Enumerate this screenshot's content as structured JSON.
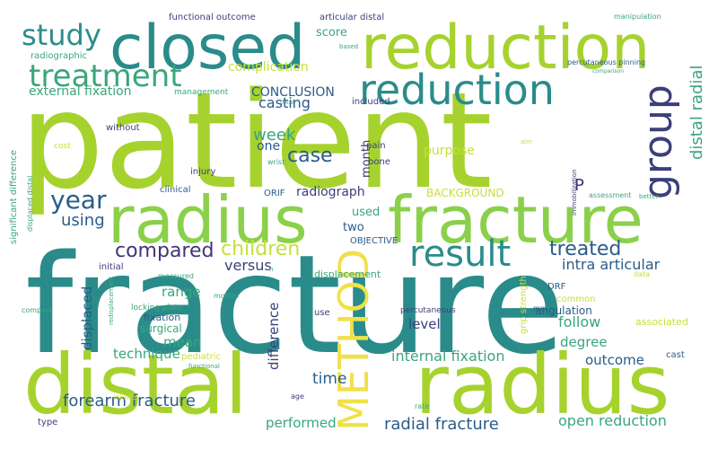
{
  "words": [
    {
      "text": "patient",
      "color": "#a6d22e"
    },
    {
      "text": "fracture",
      "color": "#2a8c8a"
    },
    {
      "text": "distal",
      "color": "#a6d22e"
    },
    {
      "text": "radius",
      "color": "#a6d22e"
    },
    {
      "text": "closed",
      "color": "#2a8c8a"
    },
    {
      "text": "reduction",
      "color": "#a6d22e"
    },
    {
      "text": "radius",
      "color": "#8bd04a"
    },
    {
      "text": "fracture",
      "color": "#8bd04a"
    },
    {
      "text": "reduction",
      "color": "#2a8c8a"
    },
    {
      "text": "result",
      "color": "#2a8c8a"
    },
    {
      "text": "METHOD",
      "color": "#f0e14a"
    },
    {
      "text": "group",
      "color": "#3b3f7a"
    },
    {
      "text": "treatment",
      "color": "#3aa67c"
    },
    {
      "text": "study",
      "color": "#2a8c8a"
    },
    {
      "text": "year",
      "color": "#2a5c8a"
    },
    {
      "text": "compared",
      "color": "#44337a"
    },
    {
      "text": "children",
      "color": "#c6e03a"
    },
    {
      "text": "treated",
      "color": "#2a5c8a"
    },
    {
      "text": "distal radial",
      "color": "#3aa67c"
    },
    {
      "text": "case",
      "color": "#2a5c8a"
    },
    {
      "text": "week",
      "color": "#3aa67c"
    },
    {
      "text": "casting",
      "color": "#2a5c8a"
    },
    {
      "text": "CONCLUSION",
      "color": "#2a5c8a"
    },
    {
      "text": "external fixation",
      "color": "#3aa67c"
    },
    {
      "text": "complication",
      "color": "#c6e03a"
    },
    {
      "text": "score",
      "color": "#3aa67c"
    },
    {
      "text": "radiograph",
      "color": "#3b3f7a"
    },
    {
      "text": "BACKGROUND",
      "color": "#c6e03a"
    },
    {
      "text": "purpose",
      "color": "#c6e03a"
    },
    {
      "text": "using",
      "color": "#2a5c8a"
    },
    {
      "text": "intra articular",
      "color": "#2a5c8a"
    },
    {
      "text": "versus",
      "color": "#3b3f7a"
    },
    {
      "text": "range",
      "color": "#3aa67c"
    },
    {
      "text": "displaced",
      "color": "#2a5c8a"
    },
    {
      "text": "mean",
      "color": "#3aa67c"
    },
    {
      "text": "technique",
      "color": "#3aa67c"
    },
    {
      "text": "difference",
      "color": "#3b3f7a"
    },
    {
      "text": "level",
      "color": "#3b3f7a"
    },
    {
      "text": "follow",
      "color": "#3aa67c"
    },
    {
      "text": "degree",
      "color": "#3aa67c"
    },
    {
      "text": "internal fixation",
      "color": "#3aa67c"
    },
    {
      "text": "outcome",
      "color": "#2a5c8a"
    },
    {
      "text": "time",
      "color": "#2a5c8a"
    },
    {
      "text": "forearm fracture",
      "color": "#2a5c8a"
    },
    {
      "text": "performed",
      "color": "#3aa67c"
    },
    {
      "text": "radial fracture",
      "color": "#2a5c8a"
    },
    {
      "text": "open reduction",
      "color": "#3aa67c"
    },
    {
      "text": "month",
      "color": "#3b3f7a"
    },
    {
      "text": "one",
      "color": "#2a5c8a"
    },
    {
      "text": "two",
      "color": "#2a5c8a"
    },
    {
      "text": "used",
      "color": "#3aa67c"
    },
    {
      "text": "P",
      "color": "#44337a"
    },
    {
      "text": "OBJECTIVE",
      "color": "#2a5c8a"
    },
    {
      "text": "displacement",
      "color": "#3aa67c"
    },
    {
      "text": "functional outcome",
      "color": "#3b3f7a"
    },
    {
      "text": "articular distal",
      "color": "#3b3f7a"
    },
    {
      "text": "radiographic",
      "color": "#3aa67c"
    },
    {
      "text": "based",
      "color": "#3aa67c"
    },
    {
      "text": "manipulation",
      "color": "#3aa67c"
    },
    {
      "text": "percutaneous pinning",
      "color": "#2a5c8a"
    },
    {
      "text": "comparison",
      "color": "#3aa67c"
    },
    {
      "text": "management",
      "color": "#3aa67c"
    },
    {
      "text": "total",
      "color": "#3aa67c"
    },
    {
      "text": "included",
      "color": "#3b3f7a"
    },
    {
      "text": "without",
      "color": "#3b3f7a"
    },
    {
      "text": "cost",
      "color": "#c6e03a"
    },
    {
      "text": "aim",
      "color": "#c6e03a"
    },
    {
      "text": "immobilization",
      "color": "#3b3f7a"
    },
    {
      "text": "pain",
      "color": "#3b3f7a"
    },
    {
      "text": "bone",
      "color": "#3b3f7a"
    },
    {
      "text": "wrist",
      "color": "#3aa67c"
    },
    {
      "text": "injury",
      "color": "#3b3f7a"
    },
    {
      "text": "clinical",
      "color": "#2a5c8a"
    },
    {
      "text": "ORIF",
      "color": "#2a5c8a"
    },
    {
      "text": "assessment",
      "color": "#3aa67c"
    },
    {
      "text": "better",
      "color": "#3aa67c"
    },
    {
      "text": "significant difference",
      "color": "#3aa67c"
    },
    {
      "text": "displaced distal",
      "color": "#3aa67c"
    },
    {
      "text": "initial",
      "color": "#3b3f7a"
    },
    {
      "text": "measured",
      "color": "#3aa67c"
    },
    {
      "text": "n",
      "color": "#3aa67c"
    },
    {
      "text": "data",
      "color": "#c6e03a"
    },
    {
      "text": "DRF",
      "color": "#2a5c8a"
    },
    {
      "text": "common",
      "color": "#c6e03a"
    },
    {
      "text": "mm",
      "color": "#2a5c8a"
    },
    {
      "text": "angulation",
      "color": "#2a5c8a"
    },
    {
      "text": "grip strength",
      "color": "#c6e03a"
    },
    {
      "text": "redisplacement",
      "color": "#3aa67c"
    },
    {
      "text": "compare",
      "color": "#3aa67c"
    },
    {
      "text": "locking plate",
      "color": "#3aa67c"
    },
    {
      "text": "motion",
      "color": "#3aa67c"
    },
    {
      "text": "percutaneous",
      "color": "#3b3f7a"
    },
    {
      "text": "fixation",
      "color": "#2a5c8a"
    },
    {
      "text": "surgical",
      "color": "#3aa67c"
    },
    {
      "text": "use",
      "color": "#3b3f7a"
    },
    {
      "text": "associated",
      "color": "#c6e03a"
    },
    {
      "text": "pediatric",
      "color": "#c6e03a"
    },
    {
      "text": "functional",
      "color": "#3aa67c"
    },
    {
      "text": "cast",
      "color": "#2a5c8a"
    },
    {
      "text": "injuries",
      "color": "#c6e03a"
    },
    {
      "text": "age",
      "color": "#3b3f7a"
    },
    {
      "text": "rate",
      "color": "#3aa67c"
    },
    {
      "text": "type",
      "color": "#3b3f7a"
    }
  ]
}
